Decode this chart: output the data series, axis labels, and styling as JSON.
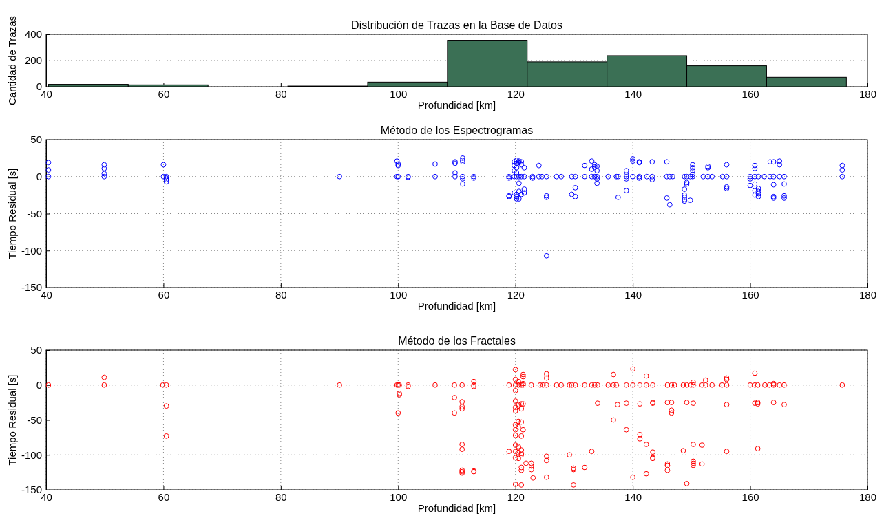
{
  "chart_data": [
    {
      "type": "histogram",
      "title": "Distribución de Trazas en la Base de Datos",
      "xlabel": "Profundidad [km]",
      "ylabel": "Cantidad de Trazas",
      "bins": [
        40.4,
        54,
        67.6,
        81.2,
        94.8,
        108.4,
        122,
        135.6,
        149.2,
        162.8,
        176.4
      ],
      "values": [
        18,
        14,
        0,
        5,
        35,
        355,
        190,
        237,
        160,
        72
      ],
      "color": "#3b7055",
      "xlim": [
        40,
        180
      ],
      "xticks": [
        40,
        60,
        80,
        100,
        120,
        140,
        160,
        180
      ],
      "ylim": [
        0,
        400
      ],
      "yticks": [
        0,
        200,
        400
      ],
      "grid": "y"
    },
    {
      "type": "scatter",
      "title": "Método de los Espectrogramas",
      "xlabel": "Profundidad [km]",
      "ylabel": "Tiempo Residual [s]",
      "xlim": [
        40,
        180
      ],
      "xticks": [
        40,
        60,
        80,
        100,
        120,
        140,
        160,
        180
      ],
      "ylim": [
        -150,
        50
      ],
      "yticks": [
        -150,
        -100,
        -50,
        0,
        50
      ],
      "grid": true,
      "marker": "circle",
      "color": "#0000ff",
      "x": [
        40.4,
        40.4,
        40.4,
        49.9,
        49.9,
        49.9,
        49.9,
        60,
        60,
        60.5,
        60.5,
        60.5,
        60.5,
        90,
        99.8,
        99.8,
        100,
        100,
        100,
        101.7,
        101.7,
        106.3,
        106.3,
        109.7,
        109.7,
        109.7,
        109.7,
        111,
        111,
        111,
        111,
        111,
        111,
        112.9,
        112.9,
        118.9,
        118.9,
        118.9,
        118.9,
        119.8,
        119.8,
        119.8,
        119.8,
        119.8,
        120.2,
        120.2,
        120.2,
        120.2,
        120.2,
        120.2,
        120.2,
        120.2,
        120.6,
        120.6,
        120.6,
        120.6,
        120.6,
        120.6,
        121,
        121,
        121,
        121,
        121.5,
        121.5,
        121.5,
        121.5,
        122.9,
        122.9,
        124,
        124,
        124.5,
        125.3,
        125.3,
        125.3,
        125.3,
        127,
        127.8,
        129.6,
        129.6,
        130.2,
        130.2,
        130.2,
        131.8,
        131.8,
        133,
        133,
        133,
        133.5,
        133.5,
        133.5,
        133.9,
        133.9,
        133.9,
        133.9,
        133.9,
        135.8,
        137.2,
        137.5,
        137.5,
        138.9,
        138.9,
        138.9,
        138.9,
        138.9,
        140,
        140,
        140,
        141.1,
        141.1,
        141.1,
        141.1,
        142.4,
        143.3,
        143.3,
        143.3,
        145.8,
        145.8,
        145.8,
        146.3,
        146.3,
        146.8,
        148.8,
        148.8,
        148.8,
        148.8,
        148.8,
        148.8,
        149.2,
        149.2,
        149.2,
        149.8,
        149.8,
        150.2,
        150.2,
        150.2,
        150.2,
        150.2,
        152,
        152.8,
        152.8,
        152.8,
        153.5,
        155.3,
        156,
        156,
        156,
        156,
        160,
        160,
        160,
        160.8,
        160.8,
        160.8,
        160.8,
        160.8,
        160.8,
        161.4,
        161.4,
        161.4,
        161.4,
        161.4,
        162.4,
        163.4,
        163.4,
        164,
        164,
        164,
        164,
        164,
        165,
        165,
        165,
        165.8,
        165.8,
        165.8,
        165.8,
        175.7,
        175.7,
        175.7
      ],
      "values": [
        19,
        9,
        0,
        16,
        11,
        4,
        0,
        16,
        0,
        0,
        -2,
        -4,
        -7,
        0,
        21,
        0,
        17,
        15,
        0,
        0,
        -1,
        17,
        0,
        20,
        18,
        5,
        0,
        25,
        22,
        20,
        0,
        -3,
        -10,
        0,
        -2,
        0,
        -2,
        -26,
        -27,
        20,
        15,
        8,
        0,
        -22,
        22,
        18,
        12,
        5,
        0,
        -24,
        -27,
        -30,
        21,
        19,
        0,
        -9,
        -20,
        -30,
        20,
        16,
        0,
        -24,
        12,
        0,
        -17,
        -22,
        0,
        -2,
        15,
        0,
        0,
        0,
        -26,
        -28,
        -107,
        0,
        0,
        0,
        -24,
        0,
        -15,
        -27,
        15,
        0,
        21,
        10,
        0,
        16,
        13,
        0,
        14,
        8,
        0,
        -3,
        -9,
        0,
        0,
        0,
        -28,
        8,
        2,
        0,
        -3,
        -19,
        24,
        21,
        0,
        20,
        19,
        0,
        -2,
        0,
        20,
        0,
        -4,
        20,
        0,
        -29,
        0,
        -38,
        0,
        0,
        -17,
        -25,
        -28,
        -31,
        -33,
        0,
        -8,
        -10,
        0,
        -32,
        16,
        12,
        8,
        3,
        0,
        0,
        14,
        12,
        0,
        0,
        0,
        16,
        0,
        -14,
        -16,
        0,
        -3,
        -12,
        15,
        11,
        0,
        -10,
        -19,
        -25,
        0,
        -16,
        -20,
        -23,
        -27,
        0,
        20,
        0,
        20,
        0,
        -11,
        -27,
        -29,
        21,
        16,
        0,
        0,
        -10,
        -26,
        -29,
        15,
        9,
        0
      ]
    },
    {
      "type": "scatter",
      "title": "Método de los Fractales",
      "xlabel": "Profundidad [km]",
      "ylabel": "Tiempo Residual [s]",
      "xlim": [
        40,
        180
      ],
      "xticks": [
        40,
        60,
        80,
        100,
        120,
        140,
        160,
        180
      ],
      "ylim": [
        -150,
        50
      ],
      "yticks": [
        -150,
        -100,
        -50,
        0,
        50
      ],
      "grid": true,
      "marker": "circle",
      "color": "#ff0000",
      "x": [
        40.4,
        49.9,
        49.9,
        59.9,
        60.5,
        60.5,
        60.5,
        90,
        99.8,
        100,
        100,
        100.2,
        100.2,
        100.2,
        101.7,
        101.7,
        106.3,
        109.6,
        109.6,
        109.6,
        110.9,
        110.9,
        110.9,
        110.9,
        110.9,
        110.9,
        110.9,
        110.9,
        110.9,
        112.9,
        112.9,
        112.9,
        112.9,
        112.9,
        118.9,
        118.9,
        120,
        120,
        120,
        120,
        120,
        120,
        120,
        120,
        120,
        120,
        120,
        120,
        120,
        120,
        120.5,
        120.5,
        120.5,
        120.5,
        120.5,
        120.5,
        120.5,
        120.5,
        120.5,
        120.5,
        121,
        121,
        121,
        121,
        121,
        121,
        121,
        121,
        121,
        121,
        121,
        121.3,
        121.3,
        121.3,
        121.3,
        121.3,
        121.3,
        121.8,
        122.7,
        122.7,
        122.7,
        122.7,
        123,
        124.2,
        124.7,
        125.3,
        125.3,
        125.3,
        125.3,
        125.3,
        125.3,
        127,
        127.8,
        129.2,
        129.2,
        129.6,
        129.9,
        129.9,
        129.9,
        130.2,
        131.8,
        131.8,
        133,
        133,
        133.5,
        134,
        134,
        135.8,
        136.7,
        136.7,
        136.7,
        137.2,
        137.4,
        138.9,
        138.9,
        138.9,
        140,
        140,
        140,
        141.2,
        141.2,
        141.2,
        141.2,
        142.3,
        142.3,
        142.3,
        142.3,
        143.4,
        143.4,
        143.4,
        143.4,
        143.4,
        143.4,
        145.9,
        145.9,
        145.9,
        145.9,
        145.9,
        146.6,
        146.6,
        146.6,
        146.6,
        147.1,
        148.6,
        148.6,
        149.2,
        149.2,
        149.2,
        149.9,
        150.3,
        150.3,
        150.3,
        150.3,
        150.3,
        150.3,
        150.3,
        151.8,
        151.8,
        151.8,
        152.4,
        152.4,
        153.5,
        155.2,
        156,
        156,
        156,
        156,
        156,
        160,
        160.8,
        160.8,
        160.8,
        161.3,
        161.3,
        161.3,
        161.3,
        162.5,
        163.3,
        164,
        164,
        164,
        165,
        165.8,
        165.8,
        175.7
      ],
      "values": [
        0,
        11,
        0,
        0,
        0,
        -30,
        -73,
        0,
        0,
        0,
        -40,
        0,
        -12,
        -14,
        0,
        -2,
        0,
        0,
        -18,
        -40,
        0,
        -24,
        -31,
        -34,
        -85,
        -92,
        -122,
        -124,
        -126,
        5,
        0,
        -2,
        -123,
        -124,
        0,
        -95,
        22,
        8,
        0,
        -8,
        -23,
        -32,
        -37,
        -57,
        -64,
        -72,
        -86,
        -95,
        -104,
        -142,
        5,
        0,
        -28,
        -30,
        -52,
        -60,
        -88,
        -90,
        -97,
        -105,
        0,
        -27,
        -34,
        -53,
        -73,
        -93,
        -98,
        -100,
        -118,
        -122,
        -143,
        15,
        12,
        2,
        0,
        -27,
        -64,
        -112,
        0,
        -112,
        -116,
        -121,
        -133,
        0,
        0,
        16,
        10,
        0,
        -102,
        -108,
        -132,
        0,
        0,
        0,
        -100,
        0,
        -119,
        -121,
        -143,
        0,
        0,
        -118,
        0,
        -95,
        0,
        0,
        -26,
        0,
        15,
        0,
        -50,
        0,
        -28,
        0,
        -26,
        -64,
        23,
        0,
        -132,
        0,
        -27,
        -71,
        -77,
        13,
        0,
        -85,
        -127,
        0,
        -25,
        -26,
        -96,
        -104,
        -105,
        0,
        -25,
        -113,
        -115,
        -122,
        0,
        -25,
        -36,
        -40,
        0,
        0,
        -94,
        0,
        -25,
        -141,
        0,
        4,
        0,
        -26,
        -85,
        -109,
        -112,
        -115,
        0,
        -86,
        -113,
        7,
        0,
        0,
        0,
        10,
        8,
        0,
        -28,
        -95,
        0,
        17,
        0,
        -26,
        0,
        -25,
        -27,
        -91,
        0,
        0,
        2,
        0,
        -25,
        0,
        0,
        -28,
        0
      ]
    }
  ]
}
